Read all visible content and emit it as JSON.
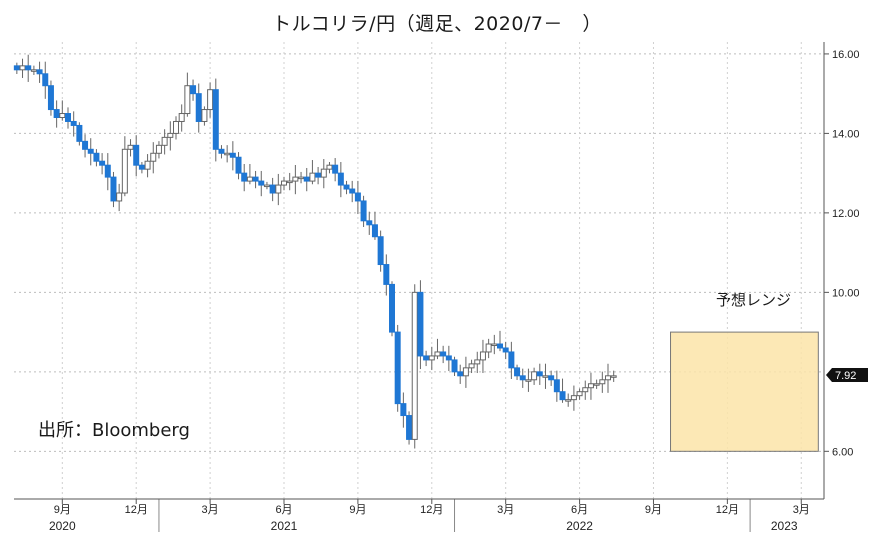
{
  "chart_data": {
    "type": "candlestick",
    "title": "トルコリラ/円（週足、2020/7－　）",
    "source": "出所：Bloomberg",
    "range_label": "予想レンジ",
    "last_value_label": "7.92",
    "ylim": [
      4.8,
      16.3
    ],
    "y_ticks": [
      {
        "value": 16,
        "label": "16.00"
      },
      {
        "value": 14,
        "label": "14.00"
      },
      {
        "value": 12,
        "label": "12.00"
      },
      {
        "value": 10,
        "label": "10.00"
      },
      {
        "value": 7.92,
        "label": "7.92"
      },
      {
        "value": 6,
        "label": "6.00"
      }
    ],
    "gridlines": [
      16,
      14,
      12,
      10,
      8,
      6
    ],
    "month_ticks": [
      {
        "label": "9月",
        "week": 8
      },
      {
        "label": "12月",
        "week": 21
      },
      {
        "label": "3月",
        "week": 34
      },
      {
        "label": "6月",
        "week": 47
      },
      {
        "label": "9月",
        "week": 60
      },
      {
        "label": "12月",
        "week": 73
      },
      {
        "label": "3月",
        "week": 86
      },
      {
        "label": "6月",
        "week": 99
      },
      {
        "label": "9月",
        "week": 112
      },
      {
        "label": "12月",
        "week": 125
      },
      {
        "label": "3月",
        "week": 138
      }
    ],
    "year_labels": [
      {
        "label": "2020",
        "week": 8
      },
      {
        "label": "2021",
        "week": 47
      },
      {
        "label": "2022",
        "week": 99
      },
      {
        "label": "2023",
        "week": 135
      }
    ],
    "year_dividers": [
      25,
      77,
      129
    ],
    "forecast_range": {
      "start_week": 115,
      "end_week": 141,
      "low": 6.0,
      "high": 9.0
    },
    "x_range": [
      -0.5,
      142
    ],
    "closes": [
      15.6,
      15.7,
      15.6,
      15.6,
      15.5,
      15.2,
      14.6,
      14.4,
      14.5,
      14.3,
      14.2,
      13.8,
      13.6,
      13.5,
      13.3,
      13.2,
      12.9,
      12.3,
      12.5,
      13.6,
      13.7,
      13.2,
      13.1,
      13.3,
      13.5,
      13.7,
      13.9,
      14.0,
      14.3,
      14.5,
      15.2,
      15.0,
      14.3,
      14.6,
      15.1,
      13.6,
      13.5,
      13.5,
      13.4,
      13.0,
      12.8,
      12.9,
      12.8,
      12.7,
      12.7,
      12.5,
      12.7,
      12.8,
      12.8,
      12.9,
      12.9,
      12.8,
      13.0,
      12.9,
      13.1,
      13.2,
      13.0,
      12.7,
      12.6,
      12.5,
      12.3,
      11.8,
      11.7,
      11.4,
      10.7,
      10.2,
      9.0,
      7.2,
      6.9,
      6.3,
      10.0,
      8.4,
      8.3,
      8.4,
      8.5,
      8.4,
      8.3,
      8.0,
      7.9,
      8.1,
      8.2,
      8.3,
      8.5,
      8.7,
      8.7,
      8.6,
      8.5,
      8.1,
      7.9,
      7.8,
      7.8,
      8.0,
      7.9,
      7.9,
      7.8,
      7.5,
      7.3,
      7.3,
      7.4,
      7.5,
      7.6,
      7.7,
      7.7,
      7.8,
      7.9,
      7.9
    ],
    "price_axis_label": "7.92"
  }
}
